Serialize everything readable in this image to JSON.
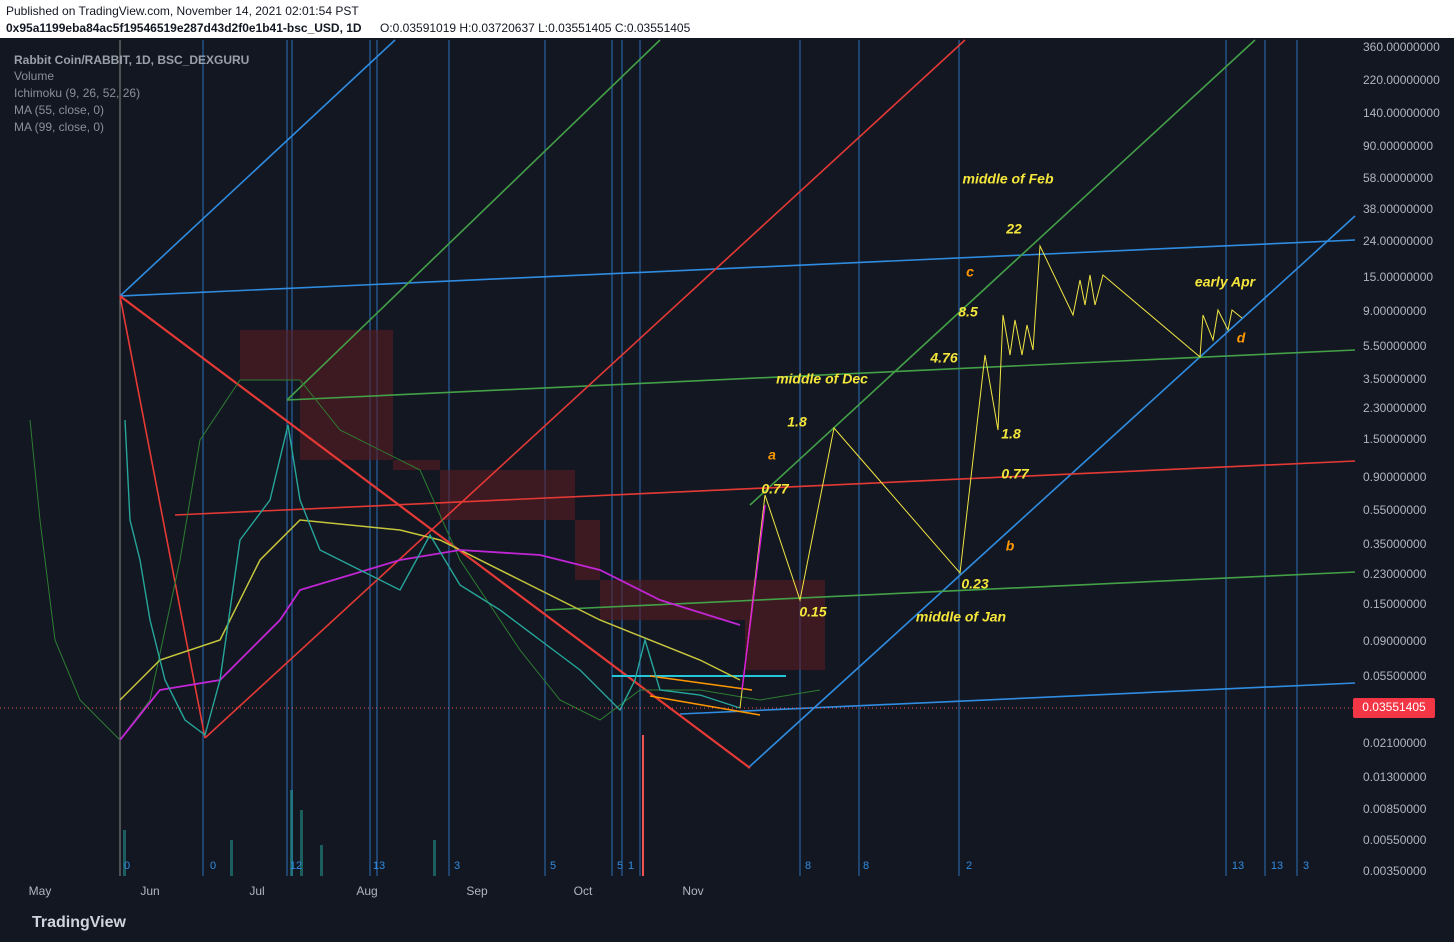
{
  "header": {
    "published": "Published on TradingView.com, November 14, 2021 02:01:54 PST",
    "symbol": "0x95a1199eba84ac5f19546519e287d43d2f0e1b41-bsc_USD, 1D",
    "ohlc": "O:0.03591019 H:0.03720637 L:0.03551405 C:0.03551405"
  },
  "legend": [
    "Rabbit Coin/RABBIT, 1D, BSC_DEXGURU",
    "Volume",
    "Ichimoku (9, 26, 52, 26)",
    "MA (55, close, 0)",
    "MA (99, close, 0)"
  ],
  "price_axis": [
    "360.00000000",
    "220.00000000",
    "140.00000000",
    "90.00000000",
    "58.00000000",
    "38.00000000",
    "24.00000000",
    "15.00000000",
    "9.00000000",
    "5.50000000",
    "3.50000000",
    "2.30000000",
    "1.50000000",
    "0.90000000",
    "0.55000000",
    "0.35000000",
    "0.23000000",
    "0.15000000",
    "0.09000000",
    "0.05500000",
    "0.02100000",
    "0.01300000",
    "0.00850000",
    "0.00550000",
    "0.00350000"
  ],
  "current_price": "0.03551405",
  "time_axis": [
    "May",
    "Jun",
    "Jul",
    "Aug",
    "Sep",
    "Oct",
    "Nov"
  ],
  "cycle_labels": [
    "0",
    "0",
    "12",
    "13",
    "3",
    "5",
    "5",
    "1",
    "8",
    "8",
    "2",
    "13",
    "13",
    "3"
  ],
  "annotations": [
    "middle of Feb",
    "22",
    "c",
    "early Apr",
    "8.5",
    "d",
    "4.76",
    "middle of Dec",
    "1.8",
    "1.8",
    "a",
    "0.77",
    "0.77",
    "b",
    "0.23",
    "0.15",
    "middle of Jan"
  ],
  "footer": "TradingView"
}
